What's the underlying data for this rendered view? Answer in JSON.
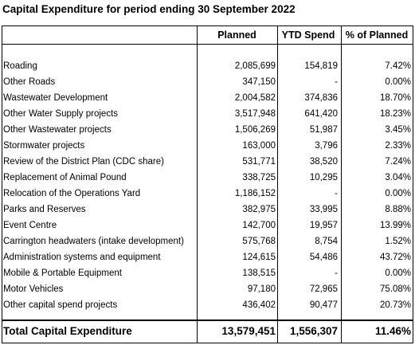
{
  "header": {
    "title": "Capital Expenditure for period ending 30 September 2022"
  },
  "table": {
    "columns": [
      "Planned",
      "YTD Spend",
      "% of Planned"
    ],
    "rows": [
      [
        "Roading",
        "2,085,699",
        "154,819",
        "7.42%"
      ],
      [
        "Other Roads",
        "347,150",
        "-",
        "0.00%"
      ],
      [
        "Wastewater Development",
        "2,004,582",
        "374,836",
        "18.70%"
      ],
      [
        "Other Water Supply projects",
        "3,517,948",
        "641,420",
        "18.23%"
      ],
      [
        "Other Wastewater projects",
        "1,506,269",
        "51,987",
        "3.45%"
      ],
      [
        "Stormwater projects",
        "163,000",
        "3,796",
        "2.33%"
      ],
      [
        "Review of the District Plan (CDC share)",
        "531,771",
        "38,520",
        "7.24%"
      ],
      [
        "Replacement of Animal Pound",
        "338,725",
        "10,295",
        "3.04%"
      ],
      [
        "Relocation of the Operations Yard",
        "1,186,152",
        "-",
        "0.00%"
      ],
      [
        "Parks and Reserves",
        "382,975",
        "33,995",
        "8.88%"
      ],
      [
        "Event Centre",
        "142,700",
        "19,957",
        "13.99%"
      ],
      [
        "Carrington headwaters (intake development)",
        "575,768",
        "8,754",
        "1.52%"
      ],
      [
        "Administration systems and equipment",
        "124,615",
        "54,486",
        "43.72%"
      ],
      [
        "Mobile & Portable Equipment",
        "138,515",
        "-",
        "0.00%"
      ],
      [
        "Motor Vehicles",
        "97,180",
        "72,965",
        "75.08%"
      ],
      [
        "Other capital spend projects",
        "436,402",
        "90,477",
        "20.73%"
      ]
    ],
    "total": [
      "Total Capital Expenditure",
      "13,579,451",
      "1,556,307",
      "11.46%"
    ]
  }
}
